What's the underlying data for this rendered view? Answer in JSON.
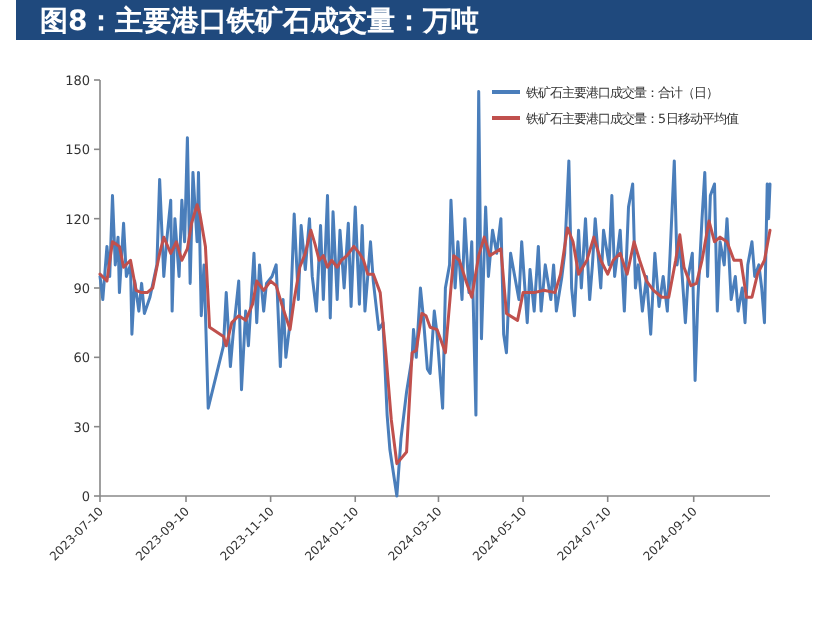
{
  "chart_data": {
    "type": "line",
    "title": "图8：主要港口铁矿石成交量：万吨",
    "xlim": [
      "2023-07-10",
      "2024-11-04"
    ],
    "ylim": [
      0,
      180
    ],
    "xticks": [
      "2023-07-10",
      "2023-09-10",
      "2023-11-10",
      "2024-01-10",
      "2024-03-10",
      "2024-05-10",
      "2024-07-10",
      "2024-09-10"
    ],
    "yticks": [
      0,
      30,
      60,
      90,
      120,
      150,
      180
    ],
    "legend": "top right",
    "series": [
      {
        "name": "铁矿石主要港口成交量：合计（日）",
        "color": "#4a7ebb",
        "x": [
          "2023-07-10",
          "2023-07-12",
          "2023-07-15",
          "2023-07-17",
          "2023-07-19",
          "2023-07-21",
          "2023-07-23",
          "2023-07-24",
          "2023-07-27",
          "2023-07-29",
          "2023-08-01",
          "2023-08-02",
          "2023-08-04",
          "2023-08-07",
          "2023-08-09",
          "2023-08-11",
          "2023-08-15",
          "2023-08-20",
          "2023-08-22",
          "2023-08-25",
          "2023-08-27",
          "2023-08-30",
          "2023-08-31",
          "2023-09-02",
          "2023-09-05",
          "2023-09-07",
          "2023-09-09",
          "2023-09-11",
          "2023-09-13",
          "2023-09-15",
          "2023-09-18",
          "2023-09-19",
          "2023-09-21",
          "2023-09-23",
          "2023-09-26",
          "2023-10-07",
          "2023-10-09",
          "2023-10-12",
          "2023-10-14",
          "2023-10-18",
          "2023-10-20",
          "2023-10-23",
          "2023-10-25",
          "2023-10-29",
          "2023-10-31",
          "2023-11-02",
          "2023-11-05",
          "2023-11-07",
          "2023-11-11",
          "2023-11-14",
          "2023-11-17",
          "2023-11-19",
          "2023-11-21",
          "2023-11-24",
          "2023-11-27",
          "2023-11-30",
          "2023-12-02",
          "2023-12-05",
          "2023-12-08",
          "2023-12-10",
          "2023-12-13",
          "2023-12-16",
          "2023-12-18",
          "2023-12-21",
          "2023-12-23",
          "2023-12-25",
          "2023-12-28",
          "2023-12-30",
          "2024-01-02",
          "2024-01-05",
          "2024-01-07",
          "2024-01-10",
          "2024-01-13",
          "2024-01-15",
          "2024-01-17",
          "2024-01-21",
          "2024-01-23",
          "2024-01-27",
          "2024-01-30",
          "2024-02-02",
          "2024-02-04",
          "2024-02-09",
          "2024-02-12",
          "2024-02-16",
          "2024-02-20",
          "2024-02-21",
          "2024-02-23",
          "2024-02-26",
          "2024-02-28",
          "2024-03-02",
          "2024-03-04",
          "2024-03-07",
          "2024-03-09",
          "2024-03-13",
          "2024-03-15",
          "2024-03-18",
          "2024-03-19",
          "2024-03-22",
          "2024-03-24",
          "2024-03-27",
          "2024-03-29",
          "2024-04-01",
          "2024-04-03",
          "2024-04-06",
          "2024-04-08",
          "2024-04-10",
          "2024-04-13",
          "2024-04-15",
          "2024-04-18",
          "2024-04-21",
          "2024-04-24",
          "2024-04-26",
          "2024-04-28",
          "2024-05-01",
          "2024-05-04",
          "2024-05-07",
          "2024-05-09",
          "2024-05-13",
          "2024-05-15",
          "2024-05-18",
          "2024-05-21",
          "2024-05-23",
          "2024-05-26",
          "2024-05-30",
          "2024-06-01",
          "2024-06-03",
          "2024-06-07",
          "2024-06-09",
          "2024-06-12",
          "2024-06-14",
          "2024-06-16",
          "2024-06-19",
          "2024-06-21",
          "2024-06-24",
          "2024-06-27",
          "2024-06-29",
          "2024-07-01",
          "2024-07-05",
          "2024-07-07",
          "2024-07-11",
          "2024-07-13",
          "2024-07-15",
          "2024-07-19",
          "2024-07-22",
          "2024-07-25",
          "2024-07-28",
          "2024-07-30",
          "2024-08-01",
          "2024-08-04",
          "2024-08-07",
          "2024-08-10",
          "2024-08-13",
          "2024-08-16",
          "2024-08-19",
          "2024-08-22",
          "2024-08-24",
          "2024-08-27",
          "2024-08-29",
          "2024-08-31",
          "2024-09-04",
          "2024-09-06",
          "2024-09-09",
          "2024-09-11",
          "2024-09-13",
          "2024-09-16",
          "2024-09-18",
          "2024-09-20",
          "2024-09-22",
          "2024-09-25",
          "2024-09-27",
          "2024-09-29",
          "2024-10-02",
          "2024-10-04",
          "2024-10-07",
          "2024-10-10",
          "2024-10-12",
          "2024-10-15",
          "2024-10-17",
          "2024-10-19",
          "2024-10-22",
          "2024-10-24",
          "2024-10-27",
          "2024-10-29",
          "2024-10-31",
          "2024-11-02",
          "2024-11-03",
          "2024-11-04"
        ],
        "values": [
          95,
          85,
          108,
          95,
          130,
          100,
          112,
          88,
          118,
          95,
          100,
          70,
          93,
          80,
          92,
          79,
          86,
          100,
          137,
          95,
          110,
          128,
          80,
          120,
          95,
          128,
          110,
          155,
          92,
          140,
          110,
          140,
          78,
          100,
          38,
          65,
          88,
          56,
          70,
          93,
          46,
          80,
          65,
          105,
          75,
          100,
          80,
          92,
          95,
          100,
          56,
          85,
          60,
          75,
          122,
          85,
          117,
          98,
          120,
          95,
          80,
          117,
          85,
          130,
          77,
          123,
          85,
          115,
          90,
          118,
          82,
          125,
          83,
          117,
          80,
          110,
          93,
          72,
          75,
          35,
          20,
          0,
          25,
          45,
          60,
          72,
          60,
          90,
          78,
          55,
          53,
          80,
          70,
          38,
          90,
          100,
          128,
          90,
          110,
          85,
          120,
          88,
          110,
          35,
          175,
          68,
          125,
          95,
          115,
          105,
          120,
          70,
          62,
          105,
          95,
          85,
          110,
          75,
          98,
          80,
          108,
          80,
          100,
          85,
          100,
          80,
          95,
          105,
          145,
          90,
          78,
          115,
          90,
          120,
          85,
          100,
          120,
          90,
          115,
          100,
          130,
          95,
          115,
          80,
          125,
          135,
          90,
          100,
          80,
          95,
          70,
          105,
          82,
          95,
          80,
          105,
          145,
          100,
          110,
          75,
          95,
          105,
          50,
          85,
          120,
          140,
          95,
          130,
          135,
          80,
          110,
          100,
          120,
          85,
          95,
          80,
          90,
          75,
          100,
          110,
          95,
          100,
          90,
          75,
          135,
          120,
          135
        ]
      },
      {
        "name": "铁矿石主要港口成交量：5日移动平均值",
        "color": "#c0504d",
        "x": [
          "2023-07-10",
          "2023-07-15",
          "2023-07-19",
          "2023-07-24",
          "2023-07-27",
          "2023-08-01",
          "2023-08-05",
          "2023-08-09",
          "2023-08-13",
          "2023-08-17",
          "2023-08-22",
          "2023-08-25",
          "2023-08-30",
          "2023-09-03",
          "2023-09-07",
          "2023-09-11",
          "2023-09-14",
          "2023-09-18",
          "2023-09-20",
          "2023-09-24",
          "2023-09-27",
          "2023-10-07",
          "2023-10-09",
          "2023-10-13",
          "2023-10-18",
          "2023-10-23",
          "2023-10-28",
          "2023-10-31",
          "2023-11-05",
          "2023-11-10",
          "2023-11-14",
          "2023-11-18",
          "2023-11-24",
          "2023-11-27",
          "2023-12-01",
          "2023-12-05",
          "2023-12-09",
          "2023-12-12",
          "2023-12-15",
          "2023-12-18",
          "2023-12-21",
          "2023-12-24",
          "2023-12-28",
          "2023-12-31",
          "2024-01-04",
          "2024-01-09",
          "2024-01-13",
          "2024-01-16",
          "2024-01-19",
          "2024-01-23",
          "2024-01-28",
          "2024-02-01",
          "2024-02-05",
          "2024-02-09",
          "2024-02-16",
          "2024-02-20",
          "2024-02-23",
          "2024-02-27",
          "2024-03-01",
          "2024-03-04",
          "2024-03-09",
          "2024-03-15",
          "2024-03-21",
          "2024-03-25",
          "2024-03-31",
          "2024-04-03",
          "2024-04-08",
          "2024-04-12",
          "2024-04-16",
          "2024-04-24",
          "2024-04-28",
          "2024-05-06",
          "2024-05-10",
          "2024-05-18",
          "2024-05-25",
          "2024-06-02",
          "2024-06-06",
          "2024-06-11",
          "2024-06-15",
          "2024-06-19",
          "2024-06-25",
          "2024-06-30",
          "2024-07-05",
          "2024-07-10",
          "2024-07-14",
          "2024-07-19",
          "2024-07-24",
          "2024-07-29",
          "2024-08-02",
          "2024-08-07",
          "2024-08-12",
          "2024-08-18",
          "2024-08-23",
          "2024-08-28",
          "2024-08-31",
          "2024-09-03",
          "2024-09-08",
          "2024-09-12",
          "2024-09-16",
          "2024-09-21",
          "2024-09-25",
          "2024-09-29",
          "2024-10-04",
          "2024-10-09",
          "2024-10-14",
          "2024-10-18",
          "2024-10-22",
          "2024-10-26",
          "2024-10-31",
          "2024-11-04"
        ],
        "values": [
          96,
          93,
          110,
          108,
          99,
          102,
          89,
          88,
          88,
          90,
          105,
          112,
          105,
          110,
          102,
          107,
          118,
          126,
          122,
          108,
          73,
          69,
          65,
          75,
          78,
          76,
          83,
          93,
          89,
          93,
          91,
          83,
          72,
          85,
          99,
          105,
          115,
          109,
          102,
          104,
          99,
          102,
          99,
          102,
          104,
          108,
          105,
          102,
          96,
          96,
          88,
          62,
          33,
          14,
          19,
          62,
          63,
          79,
          78,
          73,
          72,
          62,
          104,
          102,
          91,
          86,
          104,
          112,
          104,
          107,
          79,
          76,
          88,
          88,
          89,
          88,
          96,
          116,
          110,
          96,
          102,
          112,
          102,
          96,
          102,
          105,
          96,
          110,
          102,
          93,
          89,
          86,
          86,
          102,
          113,
          99,
          91,
          92,
          102,
          119,
          110,
          112,
          110,
          102,
          102,
          86,
          86,
          96,
          102,
          115
        ]
      }
    ]
  }
}
